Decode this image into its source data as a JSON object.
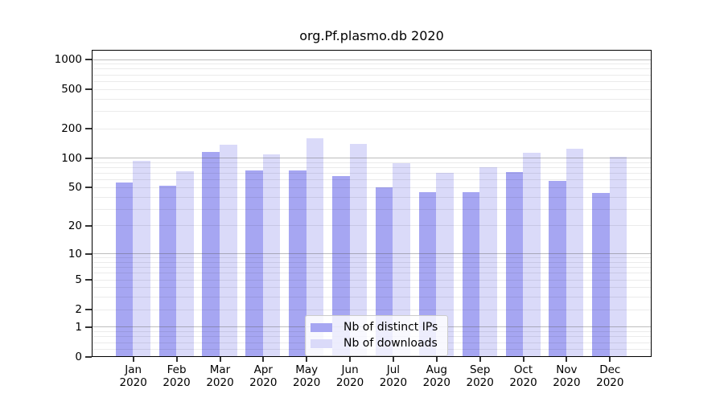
{
  "chart_data": {
    "type": "bar",
    "title": "org.Pf.plasmo.db 2020",
    "y_scale": "log10(value+1)",
    "y_ticks": [
      0,
      1,
      2,
      5,
      10,
      20,
      50,
      100,
      200,
      500,
      1000
    ],
    "y_range": [
      0,
      1000
    ],
    "grid": true,
    "legend_position": "bottom-center",
    "x_tick_labels": [
      {
        "month": "Jan",
        "year": "2020"
      },
      {
        "month": "Feb",
        "year": "2020"
      },
      {
        "month": "Mar",
        "year": "2020"
      },
      {
        "month": "Apr",
        "year": "2020"
      },
      {
        "month": "May",
        "year": "2020"
      },
      {
        "month": "Jun",
        "year": "2020"
      },
      {
        "month": "Jul",
        "year": "2020"
      },
      {
        "month": "Aug",
        "year": "2020"
      },
      {
        "month": "Sep",
        "year": "2020"
      },
      {
        "month": "Oct",
        "year": "2020"
      },
      {
        "month": "Nov",
        "year": "2020"
      },
      {
        "month": "Dec",
        "year": "2020"
      }
    ],
    "series": [
      {
        "name": "Nb of distinct IPs",
        "color": "#a6a6f2",
        "values": [
          56,
          52,
          115,
          75,
          75,
          65,
          50,
          45,
          45,
          72,
          58,
          44
        ]
      },
      {
        "name": "Nb of downloads",
        "color": "#dadaf9",
        "values": [
          93,
          73,
          135,
          108,
          158,
          139,
          88,
          70,
          80,
          112,
          123,
          103
        ]
      }
    ]
  }
}
